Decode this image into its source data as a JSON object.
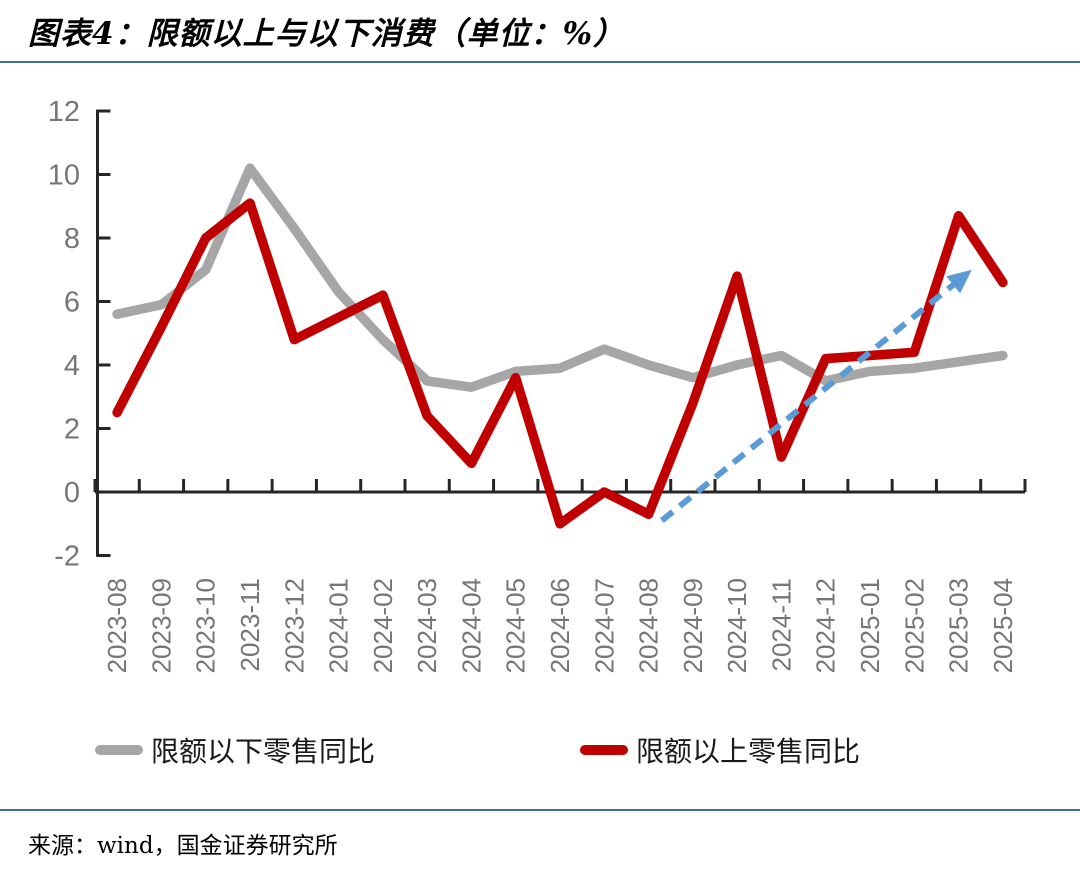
{
  "header": {
    "title": "图表4：限额以上与以下消费（单位：%）"
  },
  "source": {
    "text": "来源：wind，国金证券研究所"
  },
  "colors": {
    "red": "#C00000",
    "gray": "#A6A6A6",
    "arrow_blue": "#5B9BD5",
    "separator": "#44708C",
    "axis": "#262626",
    "tick_label": "#767676"
  },
  "legend": {
    "items": [
      {
        "label": "限额以下零售同比",
        "color_key": "gray"
      },
      {
        "label": "限额以上零售同比",
        "color_key": "red"
      }
    ]
  },
  "chart_data": {
    "type": "line",
    "title": "图表4：限额以上与以下消费（单位：%）",
    "xlabel": "",
    "ylabel": "",
    "ylim": [
      -2,
      12
    ],
    "ytick_step": 2,
    "grid": false,
    "legend_position": "bottom",
    "categories": [
      "2023-08",
      "2023-09",
      "2023-10",
      "2023-11",
      "2023-12",
      "2024-01",
      "2024-02",
      "2024-03",
      "2024-04",
      "2024-05",
      "2024-06",
      "2024-07",
      "2024-08",
      "2024-09",
      "2024-10",
      "2024-11",
      "2024-12",
      "2025-01",
      "2025-02",
      "2025-03",
      "2025-04"
    ],
    "series": [
      {
        "name": "限额以下零售同比",
        "color_key": "gray",
        "values": [
          5.6,
          5.9,
          7.0,
          10.2,
          8.3,
          6.3,
          4.8,
          3.5,
          3.3,
          3.8,
          3.9,
          4.5,
          4.0,
          3.6,
          4.0,
          4.3,
          3.5,
          3.8,
          3.9,
          4.1,
          4.3
        ]
      },
      {
        "name": "限额以上零售同比",
        "color_key": "red",
        "values": [
          2.5,
          5.2,
          8.0,
          9.1,
          4.8,
          5.5,
          6.2,
          2.4,
          0.9,
          3.6,
          -1.0,
          0.0,
          -0.7,
          2.8,
          6.8,
          1.1,
          4.2,
          4.3,
          4.4,
          8.7,
          6.6
        ]
      }
    ],
    "annotation_arrow": {
      "description": "blue dashed upward trend arrow",
      "x1_index": 12.3,
      "y1": -0.9,
      "x2_index": 19.3,
      "y2": 7.0
    }
  }
}
